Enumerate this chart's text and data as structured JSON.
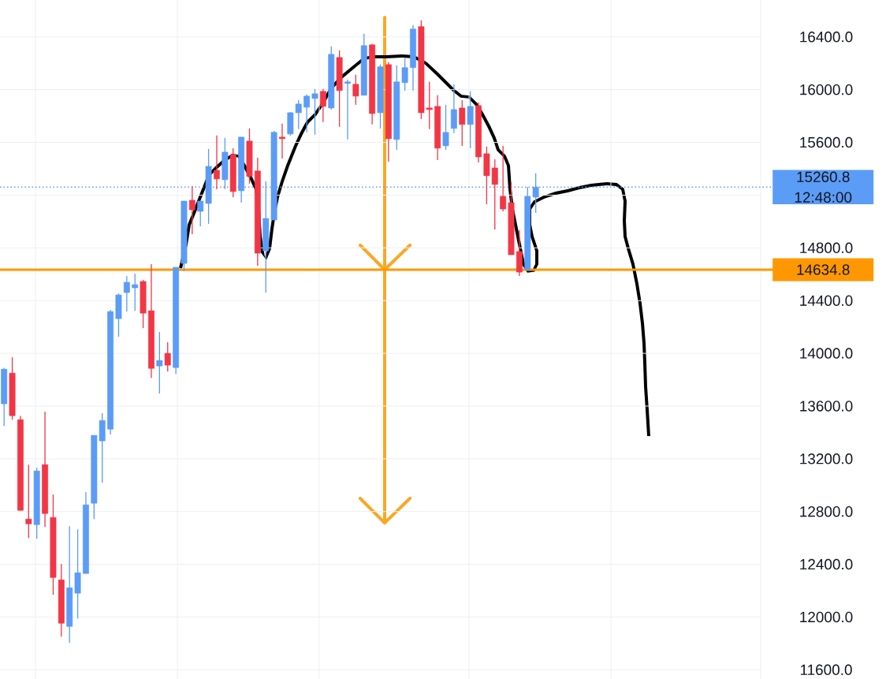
{
  "chart_data": {
    "type": "candlestick",
    "categories": [
      null,
      null,
      null,
      null,
      null,
      null,
      null,
      null,
      null,
      null,
      null,
      null,
      null,
      null,
      null,
      null,
      null,
      null,
      null,
      null,
      null,
      null,
      null,
      null,
      null,
      null,
      null,
      null,
      null,
      null,
      null,
      null,
      null,
      null,
      null,
      null,
      null,
      null,
      null,
      null,
      null,
      null,
      null,
      null,
      null,
      null,
      null,
      null,
      null,
      null,
      null,
      null,
      null,
      null,
      null,
      null,
      null,
      null,
      null,
      null,
      null,
      null,
      null,
      null,
      null,
      null,
      null,
      null,
      null,
      null,
      null,
      null,
      null,
      null,
      null,
      null,
      null,
      null,
      null,
      null,
      null,
      null,
      null,
      null,
      null,
      null,
      null,
      null,
      null,
      null,
      null,
      null,
      null
    ],
    "ohlc": [
      [
        13617,
        13890,
        13450,
        13880
      ],
      [
        13850,
        13970,
        13497,
        13527
      ],
      [
        13497,
        13527,
        12809,
        12809
      ],
      [
        12743,
        13156,
        12599,
        12707
      ],
      [
        12701,
        13132,
        12594,
        13108
      ],
      [
        13156,
        13557,
        12683,
        12785
      ],
      [
        12755,
        12929,
        12169,
        12300
      ],
      [
        12282,
        12402,
        11851,
        11953
      ],
      [
        11929,
        12689,
        11803,
        12222
      ],
      [
        12181,
        12665,
        11989,
        12336
      ],
      [
        12330,
        12947,
        12330,
        12851
      ],
      [
        12863,
        13378,
        12743,
        13378
      ],
      [
        13336,
        13545,
        13018,
        13491
      ],
      [
        13425,
        14329,
        13384,
        14317
      ],
      [
        14263,
        14455,
        14126,
        14443
      ],
      [
        14461,
        14587,
        14317,
        14539
      ],
      [
        14497,
        14604,
        14323,
        14521
      ],
      [
        14545,
        14557,
        14192,
        14305
      ],
      [
        14323,
        14676,
        13814,
        13886
      ],
      [
        13904,
        14162,
        13695,
        13946
      ],
      [
        14000,
        14084,
        13862,
        13910
      ],
      [
        13892,
        14652,
        13844,
        14652
      ],
      [
        14682,
        15155,
        14622,
        15155
      ],
      [
        15161,
        15269,
        14904,
        15089
      ],
      [
        15077,
        15155,
        14964,
        15155
      ],
      [
        15137,
        15550,
        14982,
        15418
      ],
      [
        15388,
        15652,
        15245,
        15323
      ],
      [
        15317,
        15634,
        15245,
        15526
      ],
      [
        15508,
        15556,
        15185,
        15227
      ],
      [
        15233,
        15640,
        15143,
        15640
      ],
      [
        15610,
        15706,
        15287,
        15341
      ],
      [
        15383,
        15484,
        14664,
        14760
      ],
      [
        14778,
        15305,
        14461,
        15023
      ],
      [
        15011,
        15688,
        15011,
        15676
      ],
      [
        15640,
        15742,
        15478,
        15628
      ],
      [
        15664,
        15831,
        15652,
        15825
      ],
      [
        15825,
        15921,
        15700,
        15891
      ],
      [
        15867,
        15963,
        15676,
        15951
      ],
      [
        15933,
        16005,
        15658,
        15969
      ],
      [
        15987,
        16005,
        15754,
        15873
      ],
      [
        15861,
        16328,
        15849,
        16268
      ],
      [
        16244,
        16298,
        15718,
        15993
      ],
      [
        16047,
        16077,
        15622,
        16059
      ],
      [
        16041,
        16113,
        15885,
        15951
      ],
      [
        15957,
        16424,
        15957,
        16334
      ],
      [
        16340,
        16346,
        15736,
        15819
      ],
      [
        15825,
        16190,
        15706,
        16173
      ],
      [
        16190,
        16208,
        15454,
        15628
      ],
      [
        15622,
        16185,
        15544,
        16059
      ],
      [
        16053,
        16238,
        15993,
        16167
      ],
      [
        16167,
        16490,
        15993,
        16460
      ],
      [
        16478,
        16526,
        15778,
        15825
      ],
      [
        15861,
        16059,
        15700,
        15849
      ],
      [
        15873,
        15957,
        15466,
        15556
      ],
      [
        15574,
        15885,
        15544,
        15676
      ],
      [
        15706,
        16041,
        15670,
        15849
      ],
      [
        15861,
        15921,
        15574,
        15736
      ],
      [
        15736,
        15987,
        15556,
        15873
      ],
      [
        15879,
        15903,
        15448,
        15490
      ],
      [
        15514,
        15568,
        15131,
        15347
      ],
      [
        15406,
        15472,
        14940,
        15281
      ],
      [
        15191,
        15574,
        15077,
        15095
      ],
      [
        15143,
        15299,
        14748,
        14748
      ],
      [
        14772,
        14934,
        14587,
        14616
      ],
      [
        14634,
        15263,
        14634,
        15191
      ],
      [
        15185,
        15365,
        15065,
        15260.8
      ],
      null,
      null,
      null,
      null,
      null,
      null,
      null,
      null,
      null,
      null,
      null,
      null,
      null,
      null,
      null,
      null,
      null,
      null,
      null,
      null,
      null,
      null,
      null,
      null,
      null,
      null,
      null
    ],
    "colors": [
      "#5b9cf6",
      "#f23645",
      "#f23645",
      "#f23645",
      "#5b9cf6",
      "#f23645",
      "#f23645",
      "#f23645",
      "#5b9cf6",
      "#5b9cf6",
      "#5b9cf6",
      "#5b9cf6",
      "#5b9cf6",
      "#5b9cf6",
      "#5b9cf6",
      "#5b9cf6",
      "#5b9cf6",
      "#f23645",
      "#f23645",
      "#5b9cf6",
      "#f23645",
      "#5b9cf6",
      "#5b9cf6",
      "#f23645",
      "#5b9cf6",
      "#5b9cf6",
      "#f23645",
      "#5b9cf6",
      "#f23645",
      "#5b9cf6",
      "#f23645",
      "#f23645",
      "#5b9cf6",
      "#5b9cf6",
      "#f23645",
      "#5b9cf6",
      "#5b9cf6",
      "#5b9cf6",
      "#5b9cf6",
      "#f23645",
      "#5b9cf6",
      "#f23645",
      "#5b9cf6",
      "#f23645",
      "#5b9cf6",
      "#f23645",
      "#5b9cf6",
      "#f23645",
      "#5b9cf6",
      "#5b9cf6",
      "#5b9cf6",
      "#f23645",
      "#f23645",
      "#f23645",
      "#5b9cf6",
      "#5b9cf6",
      "#f23645",
      "#5b9cf6",
      "#f23645",
      "#f23645",
      "#f23645",
      "#f23645",
      "#f23645",
      "#f23645",
      "#5b9cf6",
      "#5b9cf6",
      null,
      null,
      null,
      null,
      null,
      null,
      null,
      null,
      null,
      null,
      null,
      null,
      null,
      null,
      null,
      null,
      null,
      null,
      null,
      null,
      null,
      null,
      null,
      null,
      null,
      null,
      null
    ],
    "ylim": [
      11530,
      16680
    ],
    "yticks": [
      {
        "value": 11600,
        "label": "11600.0"
      },
      {
        "value": 12000,
        "label": "12000.0"
      },
      {
        "value": 12400,
        "label": "12400.0"
      },
      {
        "value": 12800,
        "label": "12800.0"
      },
      {
        "value": 13200,
        "label": "13200.0"
      },
      {
        "value": 13600,
        "label": "13600.0"
      },
      {
        "value": 14000,
        "label": "14000.0"
      },
      {
        "value": 14400,
        "label": "14400.0"
      },
      {
        "value": 14800,
        "label": "14800.0"
      },
      {
        "value": 15200,
        "label": null
      },
      {
        "value": 15600,
        "label": "15600.0"
      },
      {
        "value": 16000,
        "label": "16000.0"
      },
      {
        "value": 16400,
        "label": "16400.0"
      }
    ],
    "grid": true,
    "tick_labels": "y",
    "ref_lines": [
      {
        "axis": "y",
        "value": 14634.8,
        "label": "14634.8",
        "color": "#ff9800",
        "line_style": "solid"
      },
      {
        "axis": "y",
        "value": 15260.8,
        "label": "15260.8 12:48:00",
        "color": "#5b9cf6",
        "line_style": "dotted"
      }
    ]
  }
}
